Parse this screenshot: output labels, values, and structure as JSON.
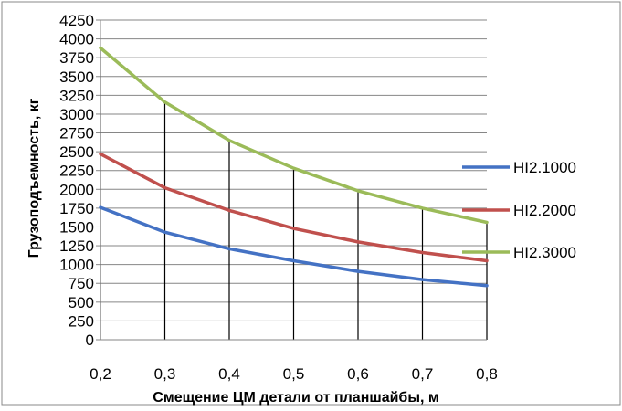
{
  "chart_data": {
    "type": "line",
    "title": "",
    "xlabel": "Смещение ЦМ детали от  планшайбы, м",
    "ylabel": "Грузоподъемность, кг",
    "x": [
      0.2,
      0.3,
      0.4,
      0.5,
      0.6,
      0.7,
      0.8
    ],
    "x_tick_labels": [
      "0,2",
      "0,3",
      "0,4",
      "0,5",
      "0,6",
      "0,7",
      "0,8"
    ],
    "xlim": [
      0.2,
      0.8
    ],
    "ylim": [
      0,
      4250
    ],
    "y_ticks": [
      0,
      250,
      500,
      750,
      1000,
      1250,
      1500,
      1750,
      2000,
      2250,
      2500,
      2750,
      3000,
      3250,
      3500,
      3750,
      4000,
      4250
    ],
    "y_tick_labels": [
      "0",
      "250",
      "500",
      "750",
      "1000",
      "1250",
      "1500",
      "1750",
      "2000",
      "2250",
      "2500",
      "2750",
      "3000",
      "3250",
      "3500",
      "3750",
      "4000",
      "4250"
    ],
    "grid": "horizontal",
    "drop_lines": true,
    "legend_position": "right",
    "series": [
      {
        "name": "НI2.1000",
        "color": "#4472C4",
        "values": [
          1760,
          1430,
          1210,
          1050,
          910,
          800,
          720
        ]
      },
      {
        "name": "НI2.2000",
        "color": "#C0504D",
        "values": [
          2470,
          2020,
          1720,
          1480,
          1300,
          1160,
          1050
        ]
      },
      {
        "name": "НI2.3000",
        "color": "#9BBB59",
        "values": [
          3880,
          3160,
          2650,
          2280,
          1980,
          1750,
          1560
        ]
      }
    ]
  }
}
